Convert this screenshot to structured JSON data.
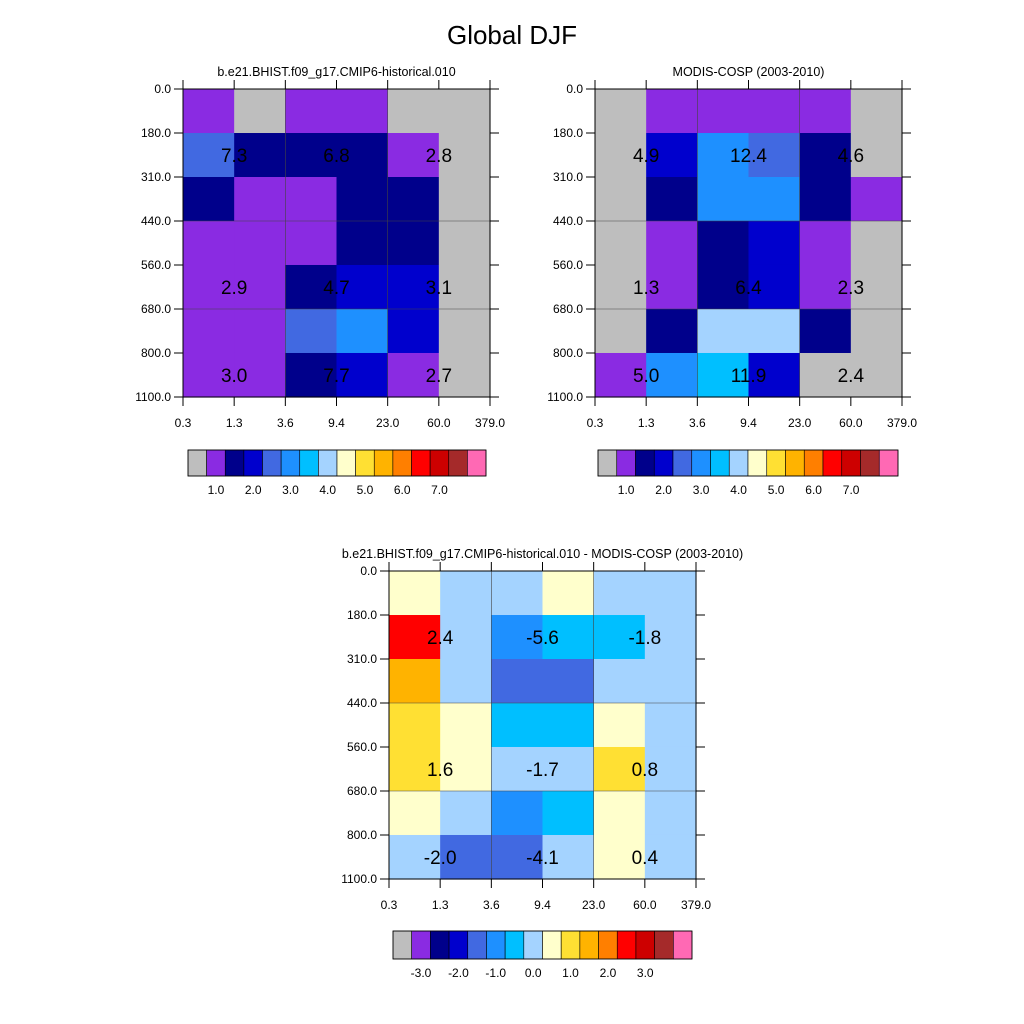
{
  "figure": {
    "title": "Global DJF"
  },
  "palettes": {
    "abs": [
      "#bebebe",
      "#8a2be2",
      "#00008b",
      "#0000cd",
      "#4169e1",
      "#1e90ff",
      "#00bfff",
      "#a4d3ff",
      "#ffffcc",
      "#ffe033",
      "#ffb300",
      "#ff7f00",
      "#ff0000",
      "#cd0000",
      "#a52a2a",
      "#ff69b4"
    ],
    "diff": [
      "#bebebe",
      "#8a2be2",
      "#00008b",
      "#0000cd",
      "#4169e1",
      "#1e90ff",
      "#00bfff",
      "#a4d3ff",
      "#ffffcc",
      "#ffe033",
      "#ffb300",
      "#ff7f00",
      "#ff0000",
      "#cd0000",
      "#a52a2a",
      "#ff69b4"
    ]
  },
  "chart_data": [
    {
      "type": "heatmap",
      "title": "b.e21.BHIST.f09_g17.CMIP6-historical.010",
      "x_tick_labels": [
        "0.3",
        "1.3",
        "3.6",
        "9.4",
        "23.0",
        "60.0",
        "379.0"
      ],
      "y_tick_labels": [
        "0.0",
        "180.0",
        "310.0",
        "440.0",
        "560.0",
        "680.0",
        "800.0",
        "1100.0"
      ],
      "cell_color_index": [
        [
          1,
          0,
          1,
          1,
          0,
          0
        ],
        [
          4,
          2,
          2,
          2,
          1,
          0
        ],
        [
          2,
          1,
          1,
          2,
          2,
          0
        ],
        [
          1,
          1,
          1,
          2,
          2,
          0
        ],
        [
          1,
          1,
          2,
          3,
          3,
          0
        ],
        [
          1,
          1,
          4,
          5,
          3,
          0
        ],
        [
          1,
          1,
          2,
          3,
          1,
          0
        ]
      ],
      "annotations": [
        {
          "col": 1,
          "row": 1,
          "text": "7.3"
        },
        {
          "col": 3,
          "row": 1,
          "text": "6.8"
        },
        {
          "col": 5,
          "row": 1,
          "text": "2.8"
        },
        {
          "col": 1,
          "row": 4,
          "text": "2.9"
        },
        {
          "col": 3,
          "row": 4,
          "text": "4.7"
        },
        {
          "col": 5,
          "row": 4,
          "text": "3.1"
        },
        {
          "col": 1,
          "row": 6,
          "text": "3.0"
        },
        {
          "col": 3,
          "row": 6,
          "text": "7.7"
        },
        {
          "col": 5,
          "row": 6,
          "text": "2.7"
        }
      ],
      "colorbar": {
        "palette": "abs",
        "labels": [
          "1.0",
          "2.0",
          "3.0",
          "4.0",
          "5.0",
          "6.0",
          "7.0"
        ]
      }
    },
    {
      "type": "heatmap",
      "title": "MODIS-COSP (2003-2010)",
      "x_tick_labels": [
        "0.3",
        "1.3",
        "3.6",
        "9.4",
        "23.0",
        "60.0",
        "379.0"
      ],
      "y_tick_labels": [
        "0.0",
        "180.0",
        "310.0",
        "440.0",
        "560.0",
        "680.0",
        "800.0",
        "1100.0"
      ],
      "cell_color_index": [
        [
          0,
          1,
          1,
          1,
          1,
          0
        ],
        [
          0,
          3,
          5,
          4,
          2,
          0
        ],
        [
          0,
          2,
          5,
          5,
          2,
          1
        ],
        [
          0,
          1,
          2,
          3,
          1,
          0
        ],
        [
          0,
          1,
          2,
          3,
          1,
          0
        ],
        [
          0,
          2,
          7,
          7,
          2,
          0
        ],
        [
          1,
          5,
          6,
          3,
          0,
          0
        ]
      ],
      "annotations": [
        {
          "col": 1,
          "row": 1,
          "text": "4.9"
        },
        {
          "col": 3,
          "row": 1,
          "text": "12.4"
        },
        {
          "col": 5,
          "row": 1,
          "text": "4.6"
        },
        {
          "col": 1,
          "row": 4,
          "text": "1.3"
        },
        {
          "col": 3,
          "row": 4,
          "text": "6.4"
        },
        {
          "col": 5,
          "row": 4,
          "text": "2.3"
        },
        {
          "col": 1,
          "row": 6,
          "text": "5.0"
        },
        {
          "col": 3,
          "row": 6,
          "text": "11.9"
        },
        {
          "col": 5,
          "row": 6,
          "text": "2.4"
        }
      ],
      "colorbar": {
        "palette": "abs",
        "labels": [
          "1.0",
          "2.0",
          "3.0",
          "4.0",
          "5.0",
          "6.0",
          "7.0"
        ]
      }
    },
    {
      "type": "heatmap",
      "title": "b.e21.BHIST.f09_g17.CMIP6-historical.010 - MODIS-COSP (2003-2010)",
      "x_tick_labels": [
        "0.3",
        "1.3",
        "3.6",
        "9.4",
        "23.0",
        "60.0",
        "379.0"
      ],
      "y_tick_labels": [
        "0.0",
        "180.0",
        "310.0",
        "440.0",
        "560.0",
        "680.0",
        "800.0",
        "1100.0"
      ],
      "cell_color_index": [
        [
          8,
          7,
          7,
          8,
          7,
          7
        ],
        [
          12,
          7,
          5,
          6,
          6,
          7
        ],
        [
          10,
          7,
          4,
          4,
          7,
          7
        ],
        [
          9,
          8,
          6,
          6,
          8,
          7
        ],
        [
          9,
          8,
          7,
          7,
          9,
          7
        ],
        [
          8,
          7,
          5,
          6,
          8,
          7
        ],
        [
          7,
          4,
          4,
          7,
          8,
          7
        ]
      ],
      "annotations": [
        {
          "col": 1,
          "row": 1,
          "text": "2.4"
        },
        {
          "col": 3,
          "row": 1,
          "text": "-5.6"
        },
        {
          "col": 5,
          "row": 1,
          "text": "-1.8"
        },
        {
          "col": 1,
          "row": 4,
          "text": "1.6"
        },
        {
          "col": 3,
          "row": 4,
          "text": "-1.7"
        },
        {
          "col": 5,
          "row": 4,
          "text": "0.8"
        },
        {
          "col": 1,
          "row": 6,
          "text": "-2.0"
        },
        {
          "col": 3,
          "row": 6,
          "text": "-4.1"
        },
        {
          "col": 5,
          "row": 6,
          "text": "0.4"
        }
      ],
      "colorbar": {
        "palette": "diff",
        "labels": [
          "-3.0",
          "-2.0",
          "-1.0",
          "0.0",
          "1.0",
          "2.0",
          "3.0"
        ]
      }
    }
  ]
}
